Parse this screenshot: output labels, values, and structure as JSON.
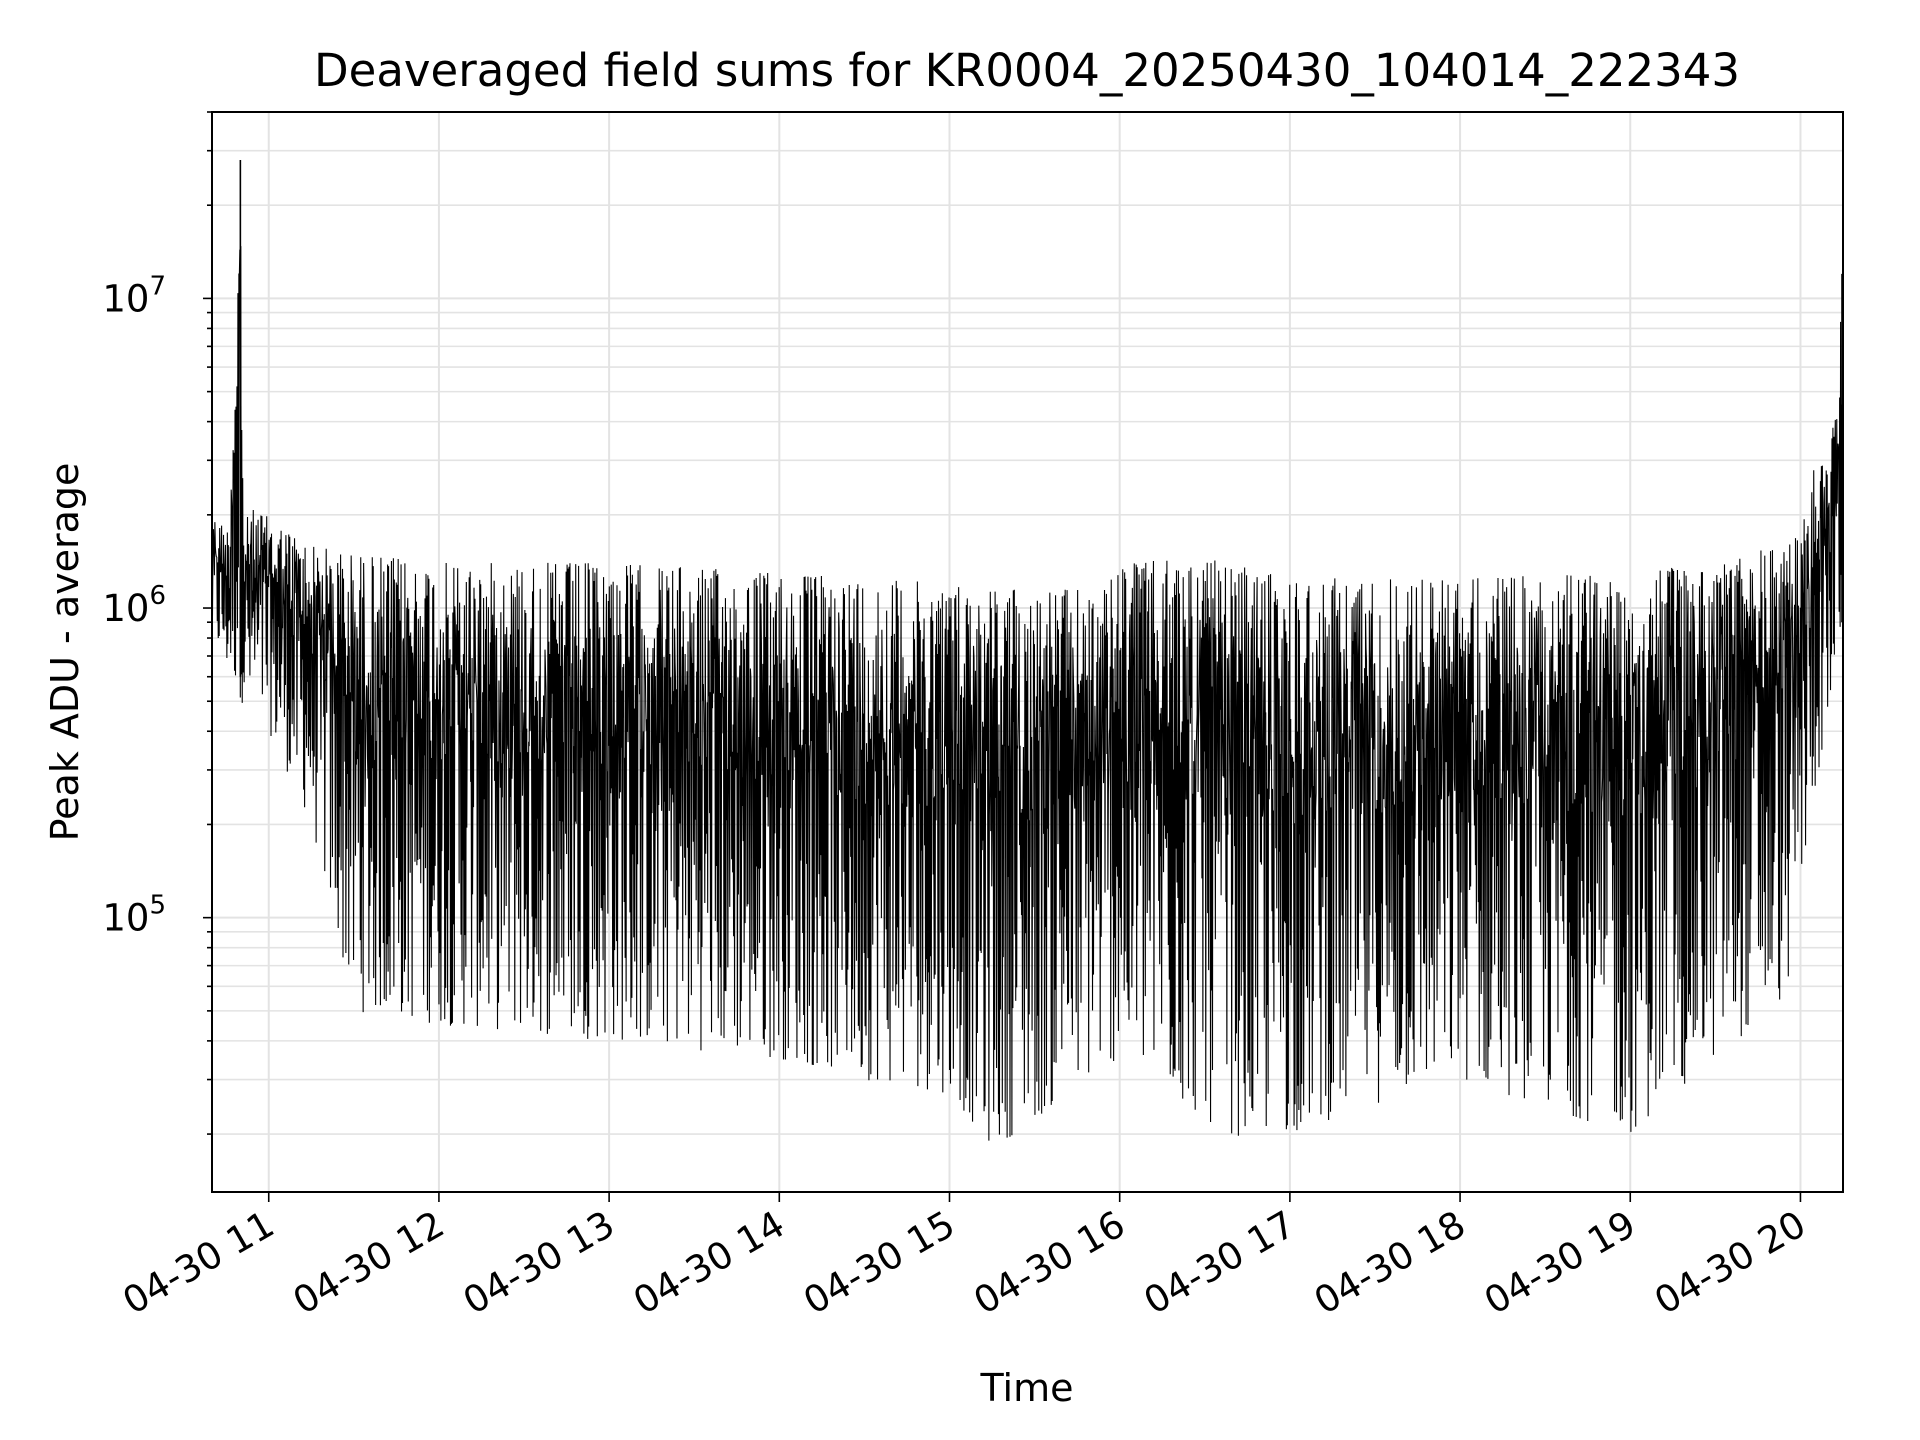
{
  "chart_data": {
    "type": "line",
    "title": "Deaveraged field sums for KR0004_20250430_104014_222343",
    "xlabel": "Time",
    "ylabel": "Peak ADU - average",
    "xscale": "date",
    "yscale": "log",
    "xlim": [
      "2025-04-30 10:40",
      "2025-04-30 20:15"
    ],
    "ylim": [
      13000,
      40000000
    ],
    "x_ticks": [
      "04-30 11",
      "04-30 12",
      "04-30 13",
      "04-30 14",
      "04-30 15",
      "04-30 16",
      "04-30 17",
      "04-30 18",
      "04-30 19",
      "04-30 20"
    ],
    "y_ticks": [
      {
        "base": "10",
        "exp": "5",
        "value": 100000
      },
      {
        "base": "10",
        "exp": "6",
        "value": 1000000
      },
      {
        "base": "10",
        "exp": "7",
        "value": 10000000
      }
    ],
    "grid": true,
    "line_color": "#000000",
    "series": [
      {
        "upper_envelope": {
          "x": [
            "2025-04-30 10:40",
            "2025-04-30 10:46",
            "2025-04-30 10:50",
            "2025-04-30 10:51",
            "2025-04-30 10:55",
            "2025-04-30 11:15",
            "2025-04-30 11:30",
            "2025-04-30 12:00",
            "2025-04-30 13:00",
            "2025-04-30 14:00",
            "2025-04-30 14:30",
            "2025-04-30 15:00",
            "2025-04-30 15:30",
            "2025-04-30 15:55",
            "2025-04-30 16:00",
            "2025-04-30 16:30",
            "2025-04-30 17:00",
            "2025-04-30 18:00",
            "2025-04-30 19:00",
            "2025-04-30 19:30",
            "2025-04-30 19:55",
            "2025-04-30 20:00",
            "2025-04-30 20:05",
            "2025-04-30 20:10",
            "2025-04-30 20:15"
          ],
          "y": [
            2000000,
            1800000,
            28000000,
            1900000,
            2100000,
            1600000,
            1500000,
            1400000,
            1400000,
            1300000,
            1250000,
            1200000,
            1150000,
            1150000,
            1400000,
            1450000,
            1250000,
            1250000,
            1300000,
            1400000,
            1650000,
            1700000,
            3200000,
            2800000,
            12000000
          ]
        },
        "lower_envelope": {
          "x": [
            "2025-04-30 10:40",
            "2025-04-30 10:50",
            "2025-04-30 11:00",
            "2025-04-30 11:15",
            "2025-04-30 11:30",
            "2025-04-30 12:00",
            "2025-04-30 13:00",
            "2025-04-30 14:00",
            "2025-04-30 14:30",
            "2025-04-30 15:00",
            "2025-04-30 15:15",
            "2025-04-30 15:30",
            "2025-04-30 16:00",
            "2025-04-30 16:30",
            "2025-04-30 16:45",
            "2025-04-30 17:00",
            "2025-04-30 17:30",
            "2025-04-30 18:00",
            "2025-04-30 18:45",
            "2025-04-30 19:00",
            "2025-04-30 19:30",
            "2025-04-30 19:55",
            "2025-04-30 20:00",
            "2025-04-30 20:05",
            "2025-04-30 20:15"
          ],
          "y": [
            800000,
            500000,
            400000,
            200000,
            50000,
            45000,
            40000,
            35000,
            30000,
            27000,
            18000,
            22000,
            35000,
            22000,
            19000,
            20000,
            25000,
            30000,
            22000,
            20000,
            35000,
            55000,
            120000,
            250000,
            800000
          ]
        }
      }
    ]
  }
}
